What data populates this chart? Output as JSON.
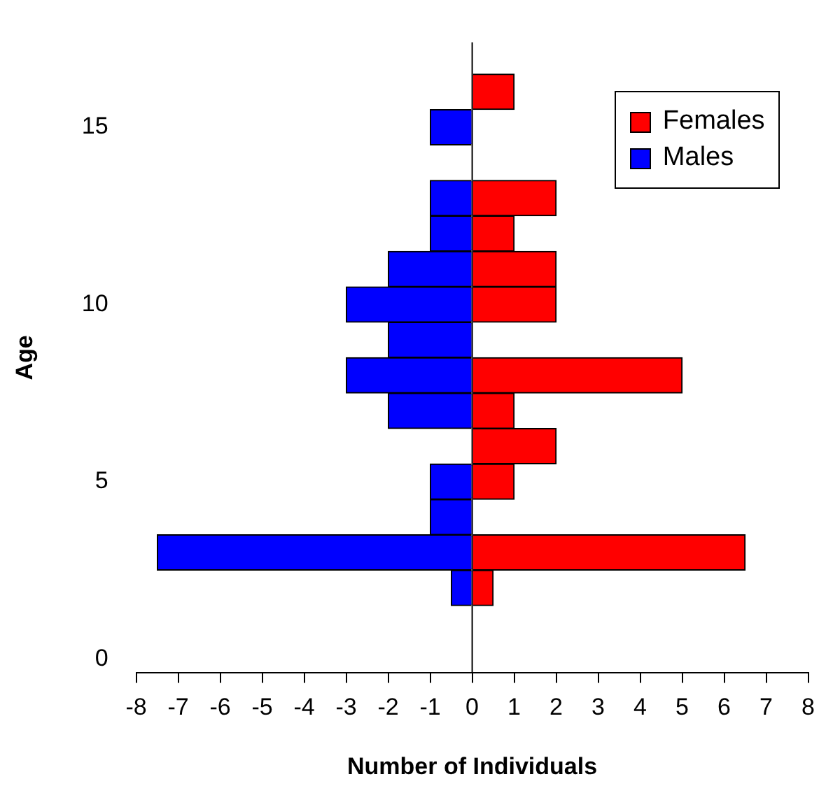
{
  "chart_data": {
    "type": "bar",
    "orientation": "horizontal",
    "xlabel": "Number of Individuals",
    "ylabel": "Age",
    "x": [
      2,
      3,
      4,
      5,
      6,
      7,
      8,
      9,
      10,
      11,
      12,
      13,
      15,
      16
    ],
    "series": [
      {
        "name": "Females",
        "color": "#ff0000",
        "values": [
          0.5,
          6.5,
          0,
          1,
          2,
          1,
          5,
          0,
          2,
          2,
          1,
          2,
          0,
          1
        ]
      },
      {
        "name": "Males",
        "color": "#0000ff",
        "values": [
          -0.5,
          -7.5,
          -1,
          -1,
          0,
          -2,
          -3,
          -2,
          -3,
          -2,
          -1,
          -1,
          -1,
          0
        ]
      }
    ],
    "xlim": [
      -8,
      8
    ],
    "xticks": [
      -8,
      -7,
      -6,
      -5,
      -4,
      -3,
      -2,
      -1,
      0,
      1,
      2,
      3,
      4,
      5,
      6,
      7,
      8
    ],
    "ylim": [
      -0.4,
      17.4
    ],
    "yticks": [
      0,
      5,
      10,
      15
    ],
    "stacked": true,
    "legend": "top right"
  }
}
